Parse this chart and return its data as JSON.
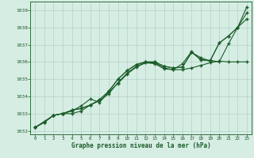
{
  "xlabel": "Graphe pression niveau de la mer (hPa)",
  "xlim": [
    -0.5,
    23.5
  ],
  "ylim": [
    1031.8,
    1039.5
  ],
  "yticks": [
    1032,
    1033,
    1034,
    1035,
    1036,
    1037,
    1038,
    1039
  ],
  "xticks": [
    0,
    1,
    2,
    3,
    4,
    5,
    6,
    7,
    8,
    9,
    10,
    11,
    12,
    13,
    14,
    15,
    16,
    17,
    18,
    19,
    20,
    21,
    22,
    23
  ],
  "background_color": "#d6ede4",
  "grid_color": "#b0d4c4",
  "line_color": "#1a5c28",
  "series": [
    [
      1032.2,
      1032.5,
      1032.9,
      1033.0,
      1033.2,
      1033.3,
      1033.5,
      1033.8,
      1034.3,
      1035.0,
      1035.5,
      1035.85,
      1036.0,
      1036.0,
      1035.75,
      1035.65,
      1035.7,
      1036.55,
      1036.15,
      1036.05,
      1037.1,
      1037.5,
      1038.0,
      1038.5
    ],
    [
      1032.2,
      1032.5,
      1032.9,
      1033.0,
      1033.0,
      1033.15,
      1033.5,
      1033.75,
      1034.15,
      1034.8,
      1035.35,
      1035.75,
      1035.95,
      1035.9,
      1035.6,
      1035.55,
      1035.55,
      1035.65,
      1035.8,
      1035.95,
      1036.05,
      1036.0,
      1036.0,
      1036.0
    ],
    [
      1032.2,
      1032.55,
      1032.9,
      1033.0,
      1033.15,
      1033.45,
      1033.85,
      1033.65,
      1034.25,
      1034.75,
      1035.3,
      1035.7,
      1035.95,
      1035.95,
      1035.65,
      1035.55,
      1035.9,
      1036.6,
      1036.1,
      1036.1,
      1036.0,
      1037.05,
      1038.0,
      1039.2
    ],
    [
      1032.2,
      1032.5,
      1032.9,
      1033.0,
      1033.2,
      1033.3,
      1033.5,
      1033.8,
      1034.3,
      1035.0,
      1035.5,
      1035.85,
      1036.0,
      1036.0,
      1035.75,
      1035.65,
      1035.7,
      1036.55,
      1036.25,
      1036.05,
      1037.1,
      1037.5,
      1038.0,
      1038.85
    ]
  ],
  "marker": "+",
  "marker_size": 3,
  "linewidth": 0.8
}
